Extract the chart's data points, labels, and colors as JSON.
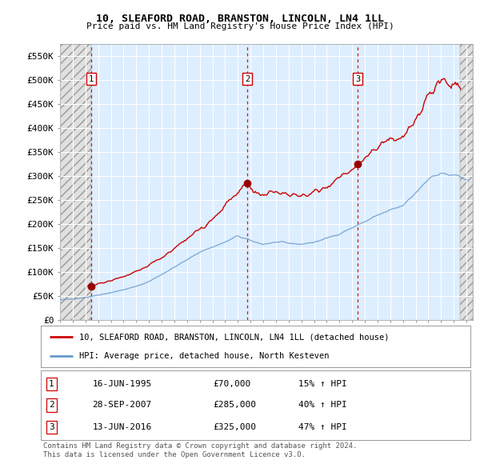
{
  "title1": "10, SLEAFORD ROAD, BRANSTON, LINCOLN, LN4 1LL",
  "title2": "Price paid vs. HM Land Registry's House Price Index (HPI)",
  "ylabel_ticks": [
    "£0",
    "£50K",
    "£100K",
    "£150K",
    "£200K",
    "£250K",
    "£300K",
    "£350K",
    "£400K",
    "£450K",
    "£500K",
    "£550K"
  ],
  "ytick_values": [
    0,
    50000,
    100000,
    150000,
    200000,
    250000,
    300000,
    350000,
    400000,
    450000,
    500000,
    550000
  ],
  "xmin": 1993.0,
  "xmax": 2025.5,
  "ymin": 0,
  "ymax": 575000,
  "sale_dates": [
    1995.46,
    2007.74,
    2016.44
  ],
  "sale_prices": [
    70000,
    285000,
    325000
  ],
  "sale_labels": [
    "1",
    "2",
    "3"
  ],
  "red_line_color": "#cc0000",
  "blue_line_color": "#6699cc",
  "background_color": "#ddeeff",
  "legend_label_red": "10, SLEAFORD ROAD, BRANSTON, LINCOLN, LN4 1LL (detached house)",
  "legend_label_blue": "HPI: Average price, detached house, North Kesteven",
  "table_entries": [
    {
      "num": "1",
      "date": "16-JUN-1995",
      "price": "£70,000",
      "hpi": "15% ↑ HPI"
    },
    {
      "num": "2",
      "date": "28-SEP-2007",
      "price": "£285,000",
      "hpi": "40% ↑ HPI"
    },
    {
      "num": "3",
      "date": "13-JUN-2016",
      "price": "£325,000",
      "hpi": "47% ↑ HPI"
    }
  ],
  "footer": "Contains HM Land Registry data © Crown copyright and database right 2024.\nThis data is licensed under the Open Government Licence v3.0."
}
